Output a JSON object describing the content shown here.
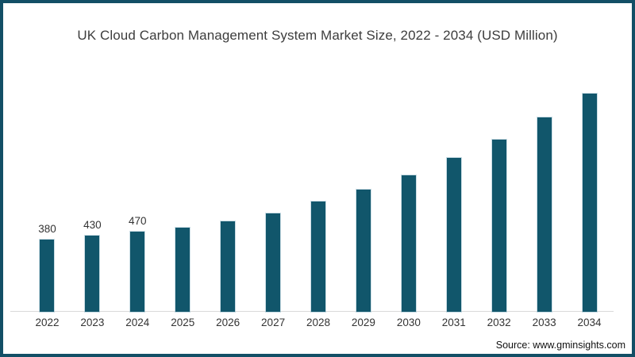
{
  "source_note": "Source: www.gminsights.com",
  "chart_data": {
    "type": "bar",
    "title": "UK Cloud Carbon Management System Market Size, 2022 - 2034 (USD Million)",
    "unit": "USD Million",
    "categories": [
      "2022",
      "2023",
      "2024",
      "2025",
      "2026",
      "2027",
      "2028",
      "2029",
      "2030",
      "2031",
      "2032",
      "2033",
      "2034"
    ],
    "values": [
      380,
      430,
      470,
      515,
      590,
      680,
      815,
      950,
      1115,
      1310,
      1515,
      1775,
      2045
    ],
    "data_labels": [
      "380",
      "430",
      "470",
      "",
      "",
      "",
      "",
      "",
      "",
      "",
      "",
      "",
      ""
    ],
    "xlabel": "",
    "ylabel": "",
    "legend": "none",
    "gridlines": false,
    "yaxis_visible": false,
    "bar_color": "#11566b",
    "axis_line_color": "#d9d9d9",
    "label_color": "#333333",
    "title_color": "#3d3d3d",
    "frame_border_color": "#134f66",
    "background_color": "#ffffff"
  }
}
